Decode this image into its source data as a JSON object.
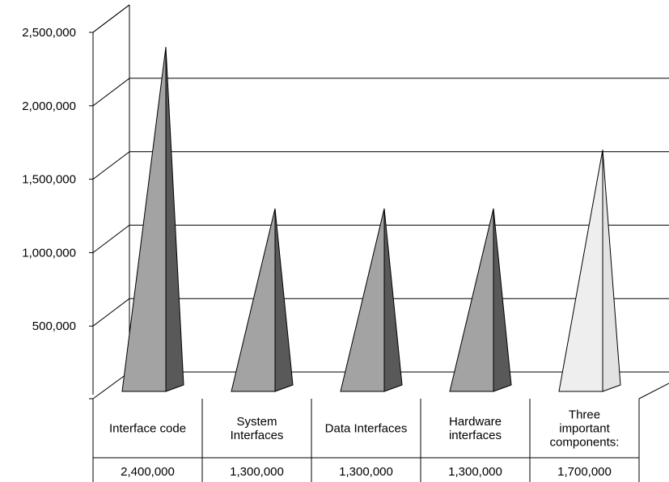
{
  "chart_data": {
    "type": "bar",
    "title": "",
    "xlabel": "",
    "ylabel": "",
    "categories": [
      [
        "Interface code"
      ],
      [
        "System",
        "Interfaces"
      ],
      [
        "Data Interfaces"
      ],
      [
        "Hardware",
        "interfaces"
      ],
      [
        "Three",
        "important",
        "components:"
      ]
    ],
    "values": [
      2400000,
      1300000,
      1300000,
      1300000,
      1700000
    ],
    "value_labels": [
      "2,400,000",
      "1,300,000",
      "1,300,000",
      "1,300,000",
      "1,700,000"
    ],
    "y_ticks": [
      500000,
      1000000,
      1500000,
      2000000,
      2500000
    ],
    "y_tick_labels": [
      "500,000",
      "1,000,000",
      "1,500,000",
      "2,000,000",
      "2,500,000"
    ],
    "ylim": [
      0,
      2500000
    ],
    "grid": true,
    "legend": "none",
    "bar_shape": "pyramid",
    "colors": {
      "front_face": "#a3a3a3",
      "side_face": "#595959",
      "highlight_front": "#eeeeee",
      "highlight_side": "#e2e2e2",
      "highlight_index": 4
    }
  }
}
